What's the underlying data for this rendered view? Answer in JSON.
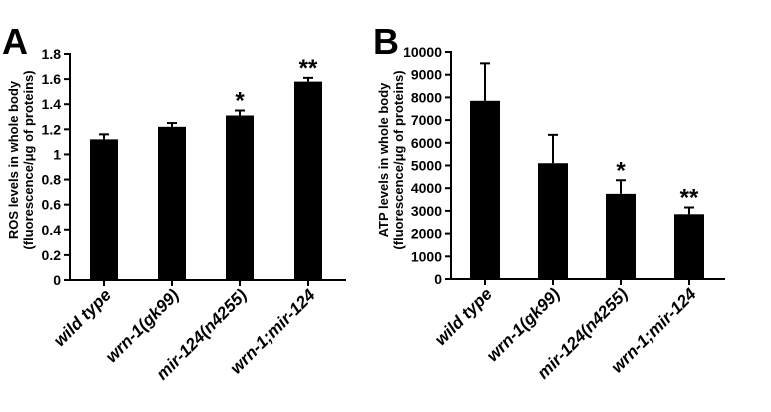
{
  "panels": [
    {
      "letter": "A",
      "ylabel_line1": "ROS levels in whole body",
      "ylabel_line2": "(fluorescence/μg of proteins)"
    },
    {
      "letter": "B",
      "ylabel_line1": "ATP levels in whole body",
      "ylabel_line2": "(fluorescence/μg of proteins)"
    }
  ],
  "chart_data": [
    {
      "type": "bar",
      "panel": "A",
      "categories": [
        "wild type",
        "wrn-1(gk99)",
        "mir-124(n4255)",
        "wrn-1;mir-124"
      ],
      "values": [
        1.12,
        1.22,
        1.31,
        1.58
      ],
      "errors": [
        0.04,
        0.03,
        0.04,
        0.03
      ],
      "significance": [
        "",
        "",
        "*",
        "**"
      ],
      "ylim": [
        0,
        1.8
      ],
      "yticks": [
        0,
        0.2,
        0.4,
        0.6,
        0.8,
        1,
        1.2,
        1.4,
        1.6,
        1.8
      ],
      "ylabel": "ROS levels in whole body (fluorescence/μg of proteins)",
      "color": "#000000"
    },
    {
      "type": "bar",
      "panel": "B",
      "categories": [
        "wild type",
        "wrn-1(gk99)",
        "mir-124(n4255)",
        "wrn-1;mir-124"
      ],
      "values": [
        7850,
        5100,
        3750,
        2850
      ],
      "errors": [
        1650,
        1250,
        600,
        300
      ],
      "significance": [
        "",
        "",
        "*",
        "**"
      ],
      "ylim": [
        0,
        10000
      ],
      "yticks": [
        0,
        1000,
        2000,
        3000,
        4000,
        5000,
        6000,
        7000,
        8000,
        9000,
        10000
      ],
      "ylabel": "ATP levels in whole body (fluorescence/μg of proteins)",
      "color": "#000000"
    }
  ]
}
